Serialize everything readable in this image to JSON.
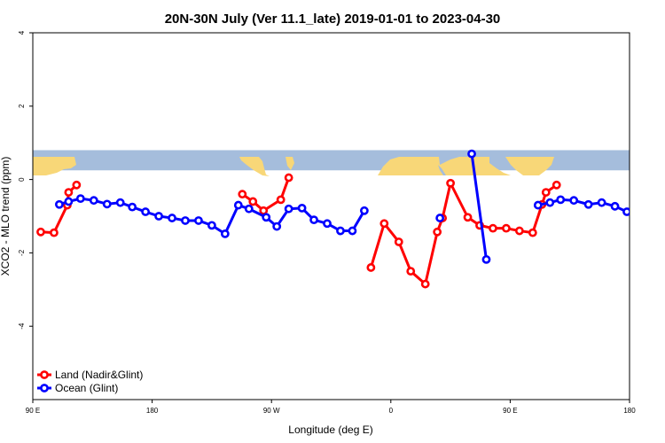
{
  "chart_data": {
    "type": "line",
    "title": "20N-30N July (Ver 11.1_late)   2019-01-01 to 2023-04-30",
    "xlabel": "Longitude (deg E)",
    "ylabel": "XCO2 - MLO trend (ppm)",
    "xlim": [
      90,
      540
    ],
    "ylim": [
      -6,
      4
    ],
    "x_ticks": [
      {
        "value": 90,
        "label": "90 E"
      },
      {
        "value": 180,
        "label": "180"
      },
      {
        "value": 270,
        "label": "90 W"
      },
      {
        "value": 360,
        "label": "0"
      },
      {
        "value": 450,
        "label": "90 E"
      },
      {
        "value": 540,
        "label": "180"
      }
    ],
    "y_ticks": [
      {
        "value": 4,
        "label": "4"
      },
      {
        "value": 2,
        "label": "2"
      },
      {
        "value": 0,
        "label": "0"
      },
      {
        "value": -2,
        "label": "-2"
      },
      {
        "value": -4,
        "label": "-4"
      }
    ],
    "map_band": {
      "y_range": [
        0.25,
        0.8
      ],
      "ocean_color": "#a5bddc",
      "land_color": "#f8d778"
    },
    "legend_position": "bottom-left",
    "series": [
      {
        "name": "Land (Nadir&Glint)",
        "color": "#ff0000",
        "segments": [
          [
            [
              96,
              -1.43
            ],
            [
              106,
              -1.45
            ],
            [
              116,
              -0.7
            ],
            [
              117,
              -0.35
            ],
            [
              123,
              -0.15
            ]
          ],
          [
            [
              248,
              -0.4
            ],
            [
              256,
              -0.6
            ],
            [
              264,
              -0.85
            ],
            [
              277,
              -0.55
            ],
            [
              283,
              0.05
            ]
          ],
          [
            [
              345,
              -2.4
            ],
            [
              355,
              -1.2
            ],
            [
              366,
              -1.7
            ],
            [
              375,
              -2.5
            ],
            [
              386,
              -2.85
            ],
            [
              395,
              -1.43
            ],
            [
              399,
              -1.05
            ],
            [
              405,
              -0.1
            ],
            [
              418,
              -1.03
            ],
            [
              427,
              -1.25
            ],
            [
              437,
              -1.33
            ],
            [
              447,
              -1.33
            ],
            [
              457,
              -1.4
            ],
            [
              467,
              -1.45
            ],
            [
              474,
              -0.68
            ],
            [
              477,
              -0.35
            ],
            [
              485,
              -0.15
            ]
          ]
        ]
      },
      {
        "name": "Ocean (Glint)",
        "color": "#0000ff",
        "segments": [
          [
            [
              110,
              -0.68
            ],
            [
              117,
              -0.6
            ],
            [
              126,
              -0.52
            ],
            [
              136,
              -0.57
            ],
            [
              146,
              -0.67
            ],
            [
              156,
              -0.63
            ],
            [
              165,
              -0.75
            ],
            [
              175,
              -0.88
            ],
            [
              185,
              -1.0
            ],
            [
              195,
              -1.05
            ],
            [
              205,
              -1.12
            ],
            [
              215,
              -1.12
            ],
            [
              225,
              -1.25
            ],
            [
              235,
              -1.48
            ],
            [
              245,
              -0.7
            ],
            [
              253,
              -0.8
            ],
            [
              266,
              -1.03
            ],
            [
              274,
              -1.28
            ],
            [
              283,
              -0.8
            ],
            [
              293,
              -0.78
            ],
            [
              302,
              -1.1
            ],
            [
              312,
              -1.2
            ],
            [
              322,
              -1.4
            ],
            [
              331,
              -1.4
            ],
            [
              340,
              -0.85
            ]
          ],
          [
            [
              397,
              -1.05
            ]
          ],
          [
            [
              421,
              0.7
            ],
            [
              432,
              -2.18
            ]
          ],
          [
            [
              471,
              -0.7
            ],
            [
              480,
              -0.63
            ],
            [
              488,
              -0.55
            ],
            [
              498,
              -0.57
            ],
            [
              509,
              -0.68
            ],
            [
              519,
              -0.63
            ],
            [
              529,
              -0.73
            ],
            [
              538,
              -0.88
            ]
          ]
        ]
      }
    ]
  }
}
